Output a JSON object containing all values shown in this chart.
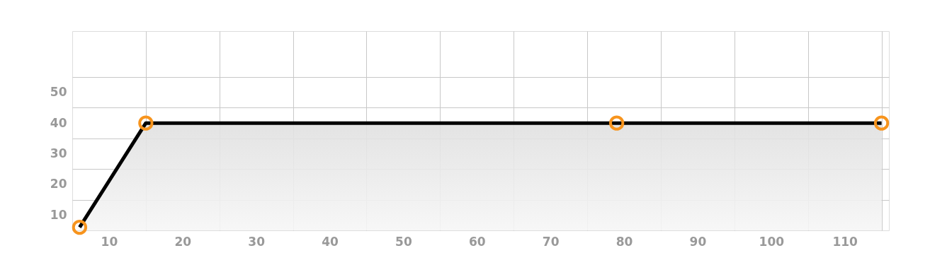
{
  "chart_data": {
    "type": "area",
    "x": [
      6,
      15,
      79,
      115
    ],
    "series": [
      {
        "color": "#000000",
        "values": [
          6,
          40,
          40,
          40
        ]
      }
    ],
    "xlim": [
      5,
      116
    ],
    "xticks": [
      10,
      {
        "value": 15,
        "label": null
      },
      20,
      {
        "value": 25,
        "label": null
      },
      30,
      {
        "value": 35,
        "label": null
      },
      40,
      {
        "value": 45,
        "label": null
      },
      50,
      {
        "value": 55,
        "label": null
      },
      60,
      {
        "value": 65,
        "label": null
      },
      70,
      {
        "value": 75,
        "label": null
      },
      80,
      {
        "value": 85,
        "label": null
      },
      90,
      {
        "value": 95,
        "label": null
      },
      100,
      {
        "value": 105,
        "label": null
      },
      110,
      {
        "value": 115,
        "label": null
      }
    ],
    "ylim": [
      5,
      70
    ],
    "yticks": [
      10,
      {
        "value": 15,
        "label": null
      },
      20,
      {
        "value": 25,
        "label": null
      },
      30,
      {
        "value": 35,
        "label": null
      },
      40,
      {
        "value": 45,
        "label": null
      },
      50,
      {
        "value": 55,
        "label": null
      }
    ],
    "grid": true,
    "marker": "circle",
    "line_style": "solid"
  }
}
